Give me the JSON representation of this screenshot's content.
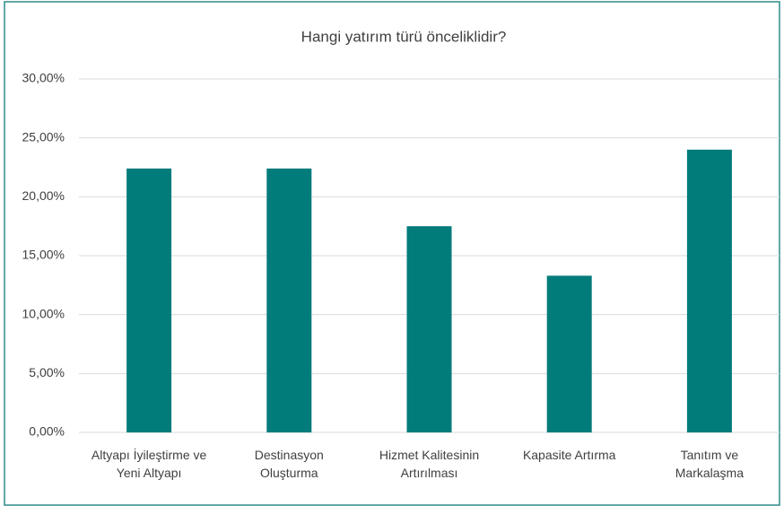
{
  "chart_data": {
    "type": "bar",
    "title": "Hangi yatırım türü önceliklidir?",
    "categories": [
      [
        "Altyapı İyileştirme ve",
        "Yeni Altyapı"
      ],
      [
        "Destinasyon",
        "Oluşturma"
      ],
      [
        "Hizmet Kalitesinin",
        "Artırılması"
      ],
      [
        "Kapasite Artırma"
      ],
      [
        "Tanıtım ve",
        "Markalaşma"
      ]
    ],
    "values": [
      22.4,
      22.4,
      17.5,
      13.3,
      24.0
    ],
    "color": "#027b7b",
    "ylim": [
      0,
      30
    ],
    "yticks": [
      {
        "value": 0,
        "label": "0,00%"
      },
      {
        "value": 5,
        "label": "5,00%"
      },
      {
        "value": 10,
        "label": "10,00%"
      },
      {
        "value": 15,
        "label": "15,00%"
      },
      {
        "value": 20,
        "label": "20,00%"
      },
      {
        "value": 25,
        "label": "25,00%"
      },
      {
        "value": 30,
        "label": "30,00%"
      }
    ],
    "grid": true
  }
}
